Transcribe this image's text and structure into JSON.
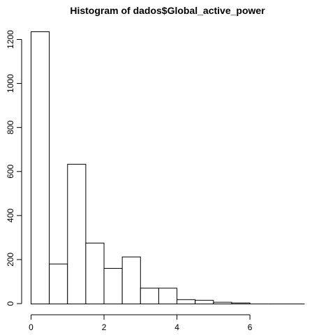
{
  "chart_data": {
    "type": "bar",
    "title": "Histogram of dados$Global_active_power",
    "xlabel": "",
    "ylabel": "",
    "bin_edges": [
      0,
      0.5,
      1,
      1.5,
      2,
      2.5,
      3,
      3.5,
      4,
      4.5,
      5,
      5.5,
      6,
      6.5,
      7,
      7.5
    ],
    "values": [
      1235,
      180,
      633,
      275,
      160,
      212,
      70,
      70,
      18,
      15,
      6,
      3,
      0,
      0,
      0
    ],
    "xlim": [
      0,
      7.5
    ],
    "ylim": [
      0,
      1250
    ],
    "x_ticks": [
      0,
      2,
      4,
      6
    ],
    "y_ticks": [
      0,
      200,
      400,
      600,
      800,
      1000,
      1200
    ],
    "grid": false,
    "legend": false
  }
}
